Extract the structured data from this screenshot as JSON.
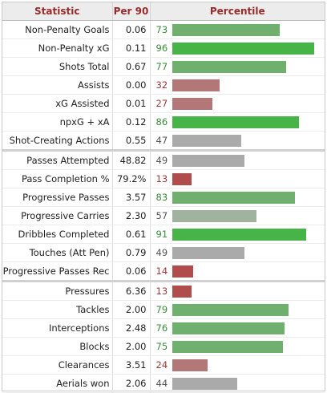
{
  "header": {
    "statistic": "Statistic",
    "per90": "Per 90",
    "percentile": "Percentile"
  },
  "colors": {
    "high": "#46b446",
    "good": "#6fb06f",
    "mid": "#9fb39f",
    "neutral": "#aaaaaa",
    "low": "#b47777",
    "verylow": "#b14c4c",
    "numhigh": "#3a8a3a",
    "numlow": "#9a3a3a",
    "header_text": "#9a2a2a"
  },
  "sections": [
    {
      "rows": [
        {
          "stat": "Non-Penalty Goals",
          "per90": "0.06",
          "percentile": 73
        },
        {
          "stat": "Non-Penalty xG",
          "per90": "0.11",
          "percentile": 96
        },
        {
          "stat": "Shots Total",
          "per90": "0.67",
          "percentile": 77
        },
        {
          "stat": "Assists",
          "per90": "0.00",
          "percentile": 32
        },
        {
          "stat": "xG Assisted",
          "per90": "0.01",
          "percentile": 27
        },
        {
          "stat": "npxG + xA",
          "per90": "0.12",
          "percentile": 86
        },
        {
          "stat": "Shot-Creating Actions",
          "per90": "0.55",
          "percentile": 47
        }
      ]
    },
    {
      "rows": [
        {
          "stat": "Passes Attempted",
          "per90": "48.82",
          "percentile": 49
        },
        {
          "stat": "Pass Completion %",
          "per90": "79.2%",
          "percentile": 13
        },
        {
          "stat": "Progressive Passes",
          "per90": "3.57",
          "percentile": 83
        },
        {
          "stat": "Progressive Carries",
          "per90": "2.30",
          "percentile": 57
        },
        {
          "stat": "Dribbles Completed",
          "per90": "0.61",
          "percentile": 91
        },
        {
          "stat": "Touches (Att Pen)",
          "per90": "0.79",
          "percentile": 49
        },
        {
          "stat": "Progressive Passes Rec",
          "per90": "0.06",
          "percentile": 14
        }
      ]
    },
    {
      "rows": [
        {
          "stat": "Pressures",
          "per90": "6.36",
          "percentile": 13
        },
        {
          "stat": "Tackles",
          "per90": "2.00",
          "percentile": 79
        },
        {
          "stat": "Interceptions",
          "per90": "2.48",
          "percentile": 76
        },
        {
          "stat": "Blocks",
          "per90": "2.00",
          "percentile": 75
        },
        {
          "stat": "Clearances",
          "per90": "3.51",
          "percentile": 24
        },
        {
          "stat": "Aerials won",
          "per90": "2.06",
          "percentile": 44
        }
      ]
    }
  ]
}
